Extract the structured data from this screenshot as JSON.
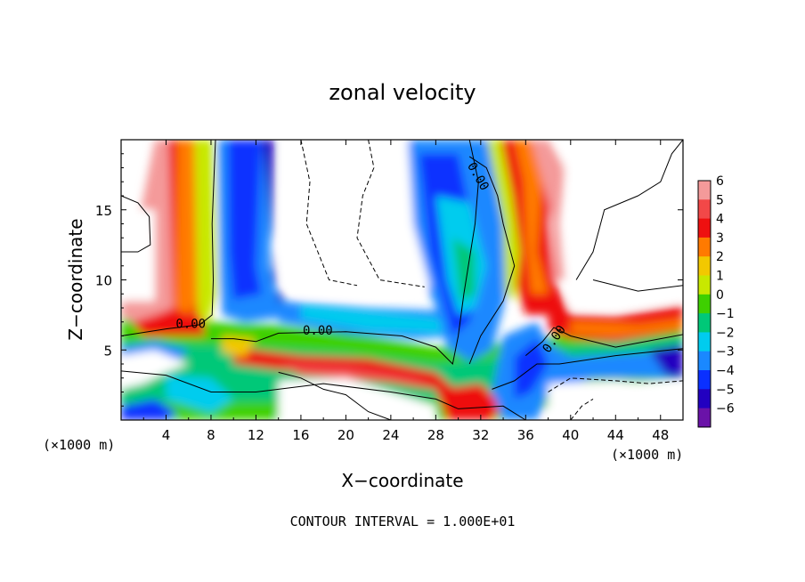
{
  "chart_data": {
    "type": "heatmap",
    "title": "zonal velocity",
    "xlabel": "X−coordinate",
    "ylabel": "Z−coordinate",
    "x_unit_label": "(×1000 m)",
    "y_unit_label": "(×1000 m)",
    "xlim": [
      0,
      50
    ],
    "ylim": [
      0,
      20
    ],
    "x_ticks": [
      4,
      8,
      12,
      16,
      20,
      24,
      28,
      32,
      36,
      40,
      44,
      48
    ],
    "y_ticks": [
      5,
      10,
      15
    ],
    "colorbar": {
      "ticks": [
        6,
        5,
        4,
        3,
        2,
        1,
        0,
        -1,
        -2,
        -3,
        -4,
        -5,
        -6
      ],
      "tick_labels": [
        "6",
        "5",
        "4",
        "3",
        "2",
        "1",
        "0",
        "−1",
        "−2",
        "−3",
        "−4",
        "−5",
        "−6"
      ],
      "colors": [
        "#f49a9a",
        "#f24848",
        "#ee1010",
        "#ff7a00",
        "#f2c800",
        "#c8e800",
        "#3ed000",
        "#00c878",
        "#00ccee",
        "#1a88ff",
        "#0a30ff",
        "#2200c0",
        "#6a12a8"
      ]
    },
    "contour_interval_text": "CONTOUR INTERVAL = 1.000E+01",
    "contour_labels": [
      {
        "text": "0.00",
        "x": 6.2,
        "y": 6.9
      },
      {
        "text": "0.00",
        "x": 17.5,
        "y": 6.4
      },
      {
        "text": "0.00",
        "x": 31.8,
        "y": 17.4
      },
      {
        "text": "0.00",
        "x": 38.5,
        "y": 5.8
      }
    ],
    "grid": false
  }
}
